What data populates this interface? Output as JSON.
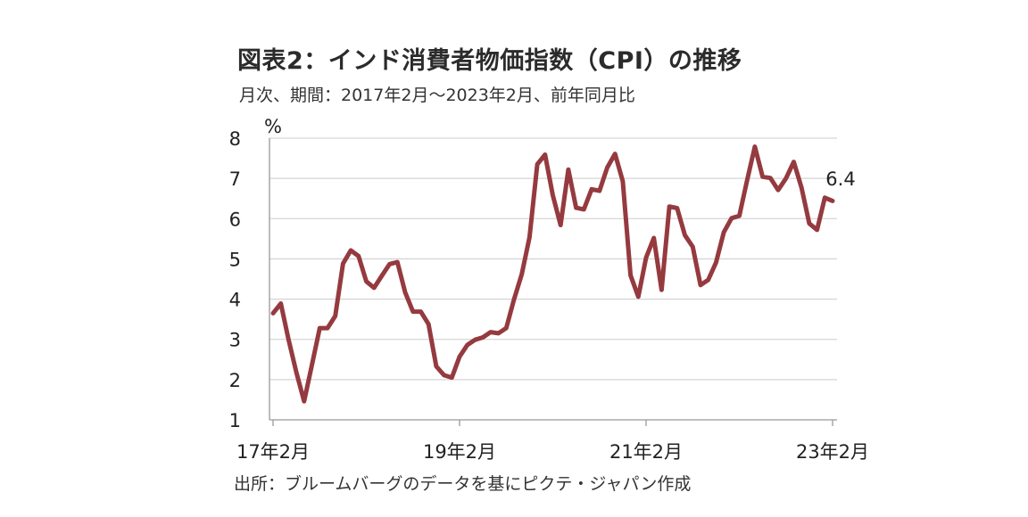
{
  "header": {
    "title": "図表2：インド消費者物価指数（CPI）の推移",
    "subtitle": "月次、期間：2017年2月～2023年2月、前年同月比"
  },
  "footer": {
    "source": "出所：ブルームバーグのデータを基にピクテ・ジャパン作成"
  },
  "chart_data": {
    "type": "line",
    "title": "図表2：インド消費者物価指数（CPI）の推移",
    "ylabel": "%",
    "ylim": [
      1,
      8
    ],
    "yticks": [
      "1",
      "2",
      "3",
      "4",
      "5",
      "6",
      "7",
      "8"
    ],
    "xticks": [
      {
        "label": "17年2月",
        "index": 0
      },
      {
        "label": "19年2月",
        "index": 24
      },
      {
        "label": "21年2月",
        "index": 48
      },
      {
        "label": "23年2月",
        "index": 72
      }
    ],
    "grid": true,
    "line_color": "#953a3f",
    "last_value_label": "6.4",
    "series": [
      {
        "values": [
          3.65,
          3.89,
          2.99,
          2.18,
          1.46,
          2.36,
          3.28,
          3.28,
          3.58,
          4.88,
          5.21,
          5.07,
          4.44,
          4.28,
          4.58,
          4.87,
          4.92,
          4.17,
          3.69,
          3.69,
          3.38,
          2.33,
          2.11,
          2.05,
          2.57,
          2.86,
          2.99,
          3.05,
          3.18,
          3.15,
          3.28,
          3.99,
          4.62,
          5.54,
          7.35,
          7.59,
          6.58,
          5.84,
          7.22,
          6.27,
          6.23,
          6.73,
          6.69,
          7.27,
          7.61,
          6.93,
          4.59,
          4.06,
          5.03,
          5.52,
          4.23,
          6.3,
          6.26,
          5.59,
          5.3,
          4.35,
          4.48,
          4.91,
          5.66,
          6.01,
          6.07,
          6.95,
          7.79,
          7.04,
          7.01,
          6.71,
          7.0,
          7.41,
          6.77,
          5.88,
          5.72,
          6.52,
          6.44
        ]
      }
    ]
  }
}
